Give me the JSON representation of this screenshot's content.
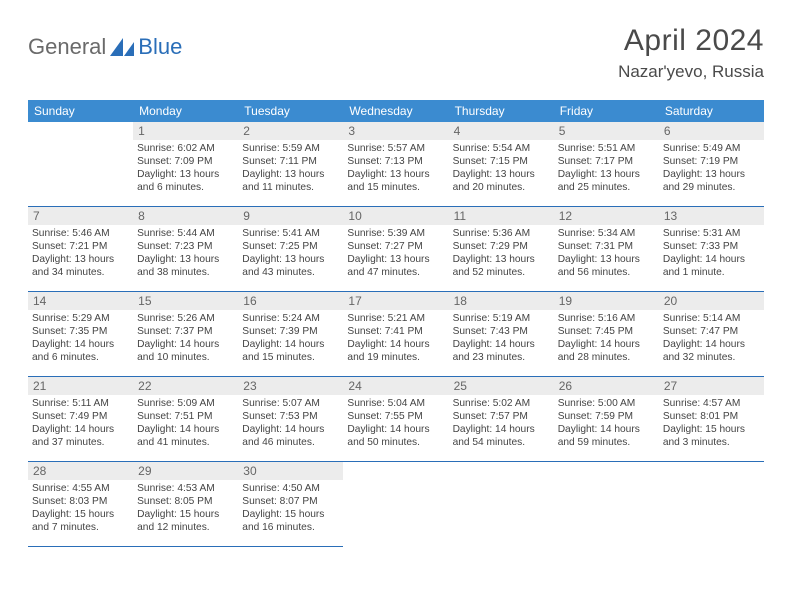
{
  "logo": {
    "text1": "General",
    "text2": "Blue"
  },
  "title": "April 2024",
  "location": "Nazar'yevo, Russia",
  "colors": {
    "header_bg": "#3b8bd0",
    "border": "#2a6eb8",
    "daynum_bg": "#ececec",
    "text": "#444444",
    "title_color": "#4a4a4a"
  },
  "days_of_week": [
    "Sunday",
    "Monday",
    "Tuesday",
    "Wednesday",
    "Thursday",
    "Friday",
    "Saturday"
  ],
  "weeks": [
    [
      {
        "n": "",
        "lines": []
      },
      {
        "n": "1",
        "lines": [
          "Sunrise: 6:02 AM",
          "Sunset: 7:09 PM",
          "Daylight: 13 hours and 6 minutes."
        ]
      },
      {
        "n": "2",
        "lines": [
          "Sunrise: 5:59 AM",
          "Sunset: 7:11 PM",
          "Daylight: 13 hours and 11 minutes."
        ]
      },
      {
        "n": "3",
        "lines": [
          "Sunrise: 5:57 AM",
          "Sunset: 7:13 PM",
          "Daylight: 13 hours and 15 minutes."
        ]
      },
      {
        "n": "4",
        "lines": [
          "Sunrise: 5:54 AM",
          "Sunset: 7:15 PM",
          "Daylight: 13 hours and 20 minutes."
        ]
      },
      {
        "n": "5",
        "lines": [
          "Sunrise: 5:51 AM",
          "Sunset: 7:17 PM",
          "Daylight: 13 hours and 25 minutes."
        ]
      },
      {
        "n": "6",
        "lines": [
          "Sunrise: 5:49 AM",
          "Sunset: 7:19 PM",
          "Daylight: 13 hours and 29 minutes."
        ]
      }
    ],
    [
      {
        "n": "7",
        "lines": [
          "Sunrise: 5:46 AM",
          "Sunset: 7:21 PM",
          "Daylight: 13 hours and 34 minutes."
        ]
      },
      {
        "n": "8",
        "lines": [
          "Sunrise: 5:44 AM",
          "Sunset: 7:23 PM",
          "Daylight: 13 hours and 38 minutes."
        ]
      },
      {
        "n": "9",
        "lines": [
          "Sunrise: 5:41 AM",
          "Sunset: 7:25 PM",
          "Daylight: 13 hours and 43 minutes."
        ]
      },
      {
        "n": "10",
        "lines": [
          "Sunrise: 5:39 AM",
          "Sunset: 7:27 PM",
          "Daylight: 13 hours and 47 minutes."
        ]
      },
      {
        "n": "11",
        "lines": [
          "Sunrise: 5:36 AM",
          "Sunset: 7:29 PM",
          "Daylight: 13 hours and 52 minutes."
        ]
      },
      {
        "n": "12",
        "lines": [
          "Sunrise: 5:34 AM",
          "Sunset: 7:31 PM",
          "Daylight: 13 hours and 56 minutes."
        ]
      },
      {
        "n": "13",
        "lines": [
          "Sunrise: 5:31 AM",
          "Sunset: 7:33 PM",
          "Daylight: 14 hours and 1 minute."
        ]
      }
    ],
    [
      {
        "n": "14",
        "lines": [
          "Sunrise: 5:29 AM",
          "Sunset: 7:35 PM",
          "Daylight: 14 hours and 6 minutes."
        ]
      },
      {
        "n": "15",
        "lines": [
          "Sunrise: 5:26 AM",
          "Sunset: 7:37 PM",
          "Daylight: 14 hours and 10 minutes."
        ]
      },
      {
        "n": "16",
        "lines": [
          "Sunrise: 5:24 AM",
          "Sunset: 7:39 PM",
          "Daylight: 14 hours and 15 minutes."
        ]
      },
      {
        "n": "17",
        "lines": [
          "Sunrise: 5:21 AM",
          "Sunset: 7:41 PM",
          "Daylight: 14 hours and 19 minutes."
        ]
      },
      {
        "n": "18",
        "lines": [
          "Sunrise: 5:19 AM",
          "Sunset: 7:43 PM",
          "Daylight: 14 hours and 23 minutes."
        ]
      },
      {
        "n": "19",
        "lines": [
          "Sunrise: 5:16 AM",
          "Sunset: 7:45 PM",
          "Daylight: 14 hours and 28 minutes."
        ]
      },
      {
        "n": "20",
        "lines": [
          "Sunrise: 5:14 AM",
          "Sunset: 7:47 PM",
          "Daylight: 14 hours and 32 minutes."
        ]
      }
    ],
    [
      {
        "n": "21",
        "lines": [
          "Sunrise: 5:11 AM",
          "Sunset: 7:49 PM",
          "Daylight: 14 hours and 37 minutes."
        ]
      },
      {
        "n": "22",
        "lines": [
          "Sunrise: 5:09 AM",
          "Sunset: 7:51 PM",
          "Daylight: 14 hours and 41 minutes."
        ]
      },
      {
        "n": "23",
        "lines": [
          "Sunrise: 5:07 AM",
          "Sunset: 7:53 PM",
          "Daylight: 14 hours and 46 minutes."
        ]
      },
      {
        "n": "24",
        "lines": [
          "Sunrise: 5:04 AM",
          "Sunset: 7:55 PM",
          "Daylight: 14 hours and 50 minutes."
        ]
      },
      {
        "n": "25",
        "lines": [
          "Sunrise: 5:02 AM",
          "Sunset: 7:57 PM",
          "Daylight: 14 hours and 54 minutes."
        ]
      },
      {
        "n": "26",
        "lines": [
          "Sunrise: 5:00 AM",
          "Sunset: 7:59 PM",
          "Daylight: 14 hours and 59 minutes."
        ]
      },
      {
        "n": "27",
        "lines": [
          "Sunrise: 4:57 AM",
          "Sunset: 8:01 PM",
          "Daylight: 15 hours and 3 minutes."
        ]
      }
    ],
    [
      {
        "n": "28",
        "lines": [
          "Sunrise: 4:55 AM",
          "Sunset: 8:03 PM",
          "Daylight: 15 hours and 7 minutes."
        ]
      },
      {
        "n": "29",
        "lines": [
          "Sunrise: 4:53 AM",
          "Sunset: 8:05 PM",
          "Daylight: 15 hours and 12 minutes."
        ]
      },
      {
        "n": "30",
        "lines": [
          "Sunrise: 4:50 AM",
          "Sunset: 8:07 PM",
          "Daylight: 15 hours and 16 minutes."
        ]
      },
      {
        "n": "",
        "lines": []
      },
      {
        "n": "",
        "lines": []
      },
      {
        "n": "",
        "lines": []
      },
      {
        "n": "",
        "lines": []
      }
    ]
  ]
}
